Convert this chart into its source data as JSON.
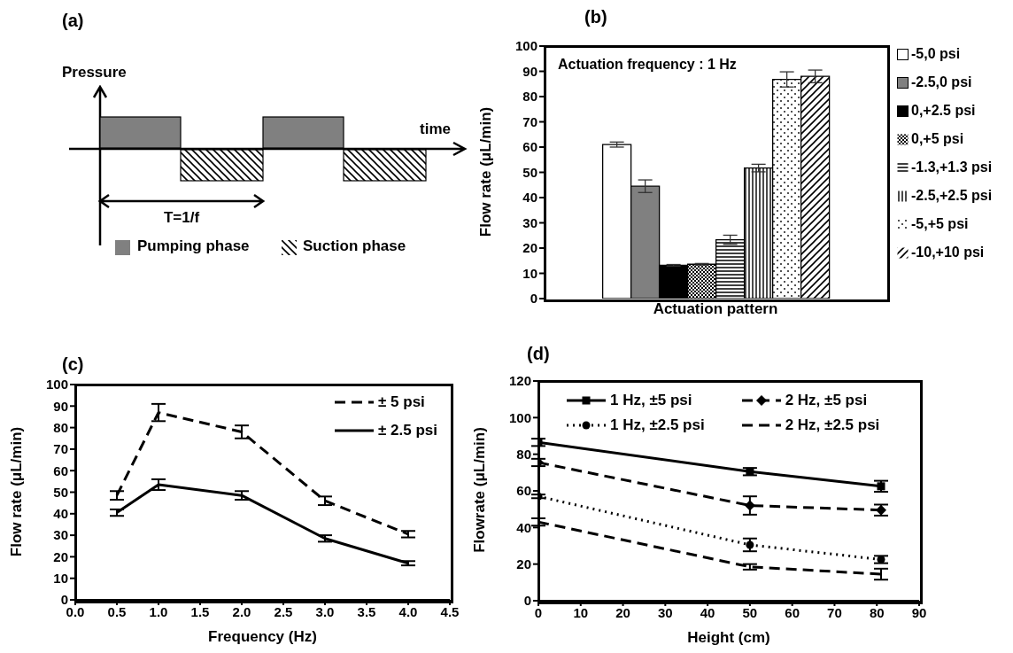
{
  "chart_data": [
    {
      "type": "other",
      "title": "(a)",
      "xlabel": "time",
      "ylabel": "Pressure",
      "annotations": [
        "T=1/f",
        "Pumping phase",
        "Suction phase"
      ]
    },
    {
      "type": "bar",
      "title": "(b)",
      "xlabel": "Actuation pattern",
      "ylabel": "Flow rate (μL/min)",
      "categories": [
        null
      ],
      "ylim": [
        0,
        100
      ],
      "yticks": [
        0,
        10,
        20,
        30,
        40,
        50,
        60,
        70,
        80,
        90,
        100
      ],
      "legend": "right",
      "annotations": [
        "Actuation frequency : 1 Hz"
      ],
      "series": [
        {
          "name": "-5,0 psi",
          "color": "#ffffff",
          "values": [
            61
          ],
          "errors": [
            1
          ]
        },
        {
          "name": "-2.5,0 psi",
          "color": "#808080",
          "values": [
            44.5
          ],
          "errors": [
            2.5
          ]
        },
        {
          "name": "0,+2.5 psi",
          "color": "#000000",
          "values": [
            13.2
          ],
          "errors": [
            0.3
          ]
        },
        {
          "name": "0,+5 psi",
          "color": "#000000",
          "values": [
            13.6
          ],
          "errors": [
            0.3
          ]
        },
        {
          "name": "-1.3,+1.3 psi",
          "color": "#000000",
          "values": [
            23.3
          ],
          "errors": [
            1.8
          ]
        },
        {
          "name": "-2.5,+2.5 psi",
          "color": "#000000",
          "values": [
            51.7
          ],
          "errors": [
            1.5
          ]
        },
        {
          "name": "-5,+5 psi",
          "color": "#000000",
          "values": [
            86.8
          ],
          "errors": [
            3
          ]
        },
        {
          "name": "-10,+10 psi",
          "color": "#000000",
          "values": [
            88
          ],
          "errors": [
            2.5
          ]
        }
      ]
    },
    {
      "type": "line",
      "title": "(c)",
      "xlabel": "Frequency (Hz)",
      "ylabel": "Flow rate (μL/min)",
      "x": [
        0.5,
        1,
        2,
        3,
        4
      ],
      "xlim": [
        0,
        4.5
      ],
      "xticks": [
        {
          "value": 0,
          "label": "0.0"
        },
        0.5,
        {
          "value": 1,
          "label": "1.0"
        },
        1.5,
        {
          "value": 2,
          "label": "2.0"
        },
        2.5,
        {
          "value": 3,
          "label": "3.0"
        },
        3.5,
        {
          "value": 4,
          "label": "4.0"
        },
        4.5
      ],
      "ylim": [
        0,
        100
      ],
      "yticks": [
        0,
        10,
        20,
        30,
        40,
        50,
        60,
        70,
        80,
        90,
        100
      ],
      "legend": "top right",
      "marker": "none",
      "series": [
        {
          "name": "± 5 psi",
          "color": "#000000",
          "line_style": "dashed",
          "values": [
            48.5,
            87,
            78,
            46,
            30.5
          ],
          "errors": [
            2,
            4,
            3,
            2,
            1.5
          ]
        },
        {
          "name": "± 2.5 psi",
          "color": "#000000",
          "line_style": "solid",
          "values": [
            40.5,
            53.5,
            48.5,
            28.5,
            17
          ],
          "errors": [
            1.5,
            2.5,
            2,
            1.5,
            1
          ]
        }
      ]
    },
    {
      "type": "line",
      "title": "(d)",
      "xlabel": "Height (cm)",
      "ylabel": "Flowrate (μL/min)",
      "x": [
        0,
        50,
        81
      ],
      "xlim": [
        0,
        90
      ],
      "xticks": [
        0,
        10,
        20,
        30,
        40,
        50,
        60,
        70,
        80,
        90
      ],
      "ylim": [
        0,
        120
      ],
      "yticks": [
        0,
        20,
        40,
        60,
        80,
        100,
        120
      ],
      "legend": "top",
      "series": [
        {
          "name": "1 Hz, ±5 psi",
          "color": "#000000",
          "line_style": "solid",
          "marker": "square",
          "values": [
            86.5,
            70.5,
            62.5
          ],
          "errors": [
            2,
            2,
            3
          ]
        },
        {
          "name": "2 Hz, ±5 psi",
          "color": "#000000",
          "line_style": "dashed",
          "marker": "diamond",
          "values": [
            75.5,
            52,
            49.5
          ],
          "errors": [
            2,
            5,
            3
          ]
        },
        {
          "name": "1 Hz, ±2.5 psi",
          "color": "#000000",
          "line_style": "dotted",
          "marker": "circle",
          "values": [
            57,
            30.5,
            22.5
          ],
          "errors": [
            1,
            3.5,
            2
          ]
        },
        {
          "name": "2 Hz, ±2.5 psi",
          "color": "#000000",
          "line_style": "dashed",
          "marker": "none",
          "values": [
            43,
            18.5,
            14.5
          ],
          "errors": [
            2,
            1.5,
            3
          ]
        }
      ]
    }
  ]
}
